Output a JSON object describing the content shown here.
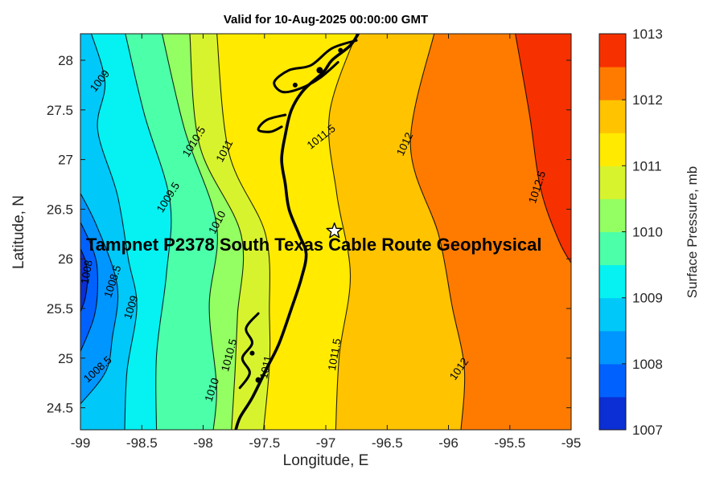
{
  "figure": {
    "title": "Valid for 10-Aug-2025 00:00:00 GMT",
    "annotation": "Tampnet P2378 South Texas Cable Route Geophysical",
    "xlabel": "Longitude, E",
    "ylabel": "Latitude, N",
    "colorbar_label": "Surface Pressure, mb"
  },
  "chart_data": {
    "type": "heatmap",
    "subtype": "filled-contour-map",
    "title": "Valid for 10-Aug-2025 00:00:00 GMT",
    "overlay_text": "Tampnet P2378 South Texas Cable Route Geophysical",
    "xlabel": "Longitude, E",
    "ylabel": "Latitude, N",
    "xlim": [
      -99,
      -95
    ],
    "ylim": [
      24.278,
      28.267
    ],
    "x_ticks": [
      "-99",
      "-98.5",
      "-98",
      "-97.5",
      "-97",
      "-96.5",
      "-96",
      "-95.5",
      "-95"
    ],
    "x_tick_values": [
      -99,
      -98.5,
      -98,
      -97.5,
      -97,
      -96.5,
      -96,
      -95.5,
      -95
    ],
    "y_ticks": [
      "28",
      "27.5",
      "27",
      "26.5",
      "26",
      "25.5",
      "25",
      "24.5"
    ],
    "y_tick_values": [
      28,
      27.5,
      27,
      26.5,
      26,
      25.5,
      25,
      24.5
    ],
    "colorbar": {
      "label": "Surface Pressure, mb",
      "ticks": [
        "1013",
        "1012",
        "1011",
        "1010",
        "1009",
        "1008",
        "1007"
      ],
      "tick_values": [
        1013,
        1012,
        1011,
        1010,
        1009,
        1008,
        1007
      ],
      "range": [
        1007,
        1013
      ],
      "band_step": 0.5,
      "min": 1007,
      "base_band_index": 3,
      "colors": [
        "#0b2fd4",
        "#0061ff",
        "#0096ff",
        "#00c8f8",
        "#06f1f1",
        "#4cffa9",
        "#93ff62",
        "#d7f32e",
        "#ffea00",
        "#ffc300",
        "#ff7b00",
        "#f73000"
      ]
    },
    "contour_levels": [
      1007.5,
      1008,
      1008.5,
      1009,
      1009.5,
      1010,
      1010.5,
      1011,
      1011.5,
      1012,
      1012.5
    ],
    "contours": [
      {
        "level": 1007.5,
        "attach": "left",
        "points": [
          [
            -99.05,
            26.22
          ],
          [
            -98.95,
            25.94
          ],
          [
            -98.96,
            25.61
          ],
          [
            -99.05,
            25.33
          ]
        ]
      },
      {
        "level": 1008,
        "attach": "left",
        "points": [
          [
            -99.05,
            26.49
          ],
          [
            -98.9,
            26.1
          ],
          [
            -98.86,
            25.82
          ],
          [
            -98.89,
            25.41
          ],
          [
            -99.05,
            24.93
          ]
        ]
      },
      {
        "level": 1008.5,
        "attach": "left",
        "points": [
          [
            -99.05,
            26.77
          ],
          [
            -98.87,
            26.34
          ],
          [
            -98.7,
            25.73
          ],
          [
            -98.74,
            25.21
          ],
          [
            -98.8,
            24.85
          ],
          [
            -99.05,
            24.47
          ]
        ]
      },
      {
        "level": 1009,
        "attach": "right",
        "points": [
          [
            -98.92,
            28.3
          ],
          [
            -98.8,
            27.78
          ],
          [
            -98.86,
            27.3
          ],
          [
            -98.7,
            26.65
          ],
          [
            -98.61,
            26.0
          ],
          [
            -98.54,
            25.52
          ],
          [
            -98.62,
            24.87
          ],
          [
            -98.64,
            24.25
          ]
        ]
      },
      {
        "level": 1009.5,
        "attach": "right",
        "points": [
          [
            -98.64,
            28.3
          ],
          [
            -98.48,
            27.46
          ],
          [
            -98.27,
            26.58
          ],
          [
            -98.3,
            25.84
          ],
          [
            -98.38,
            25.03
          ],
          [
            -98.38,
            24.25
          ]
        ]
      },
      {
        "level": 1010,
        "attach": "right",
        "points": [
          [
            -98.34,
            28.3
          ],
          [
            -98.15,
            27.3
          ],
          [
            -97.89,
            26.34
          ],
          [
            -97.95,
            25.52
          ],
          [
            -97.89,
            24.71
          ],
          [
            -97.92,
            24.25
          ]
        ]
      },
      {
        "level": 1010.5,
        "attach": "right",
        "points": [
          [
            -98.11,
            28.3
          ],
          [
            -98.03,
            27.15
          ],
          [
            -97.69,
            26.24
          ],
          [
            -97.72,
            25.43
          ],
          [
            -97.74,
            24.87
          ],
          [
            -97.77,
            24.25
          ]
        ]
      },
      {
        "level": 1011,
        "attach": "right",
        "points": [
          [
            -97.89,
            28.3
          ],
          [
            -97.79,
            27.07
          ],
          [
            -97.49,
            26.24
          ],
          [
            -97.46,
            25.43
          ],
          [
            -97.46,
            24.92
          ],
          [
            -97.51,
            24.25
          ]
        ]
      },
      {
        "level": 1011.5,
        "attach": "right",
        "points": [
          [
            -96.74,
            28.3
          ],
          [
            -96.97,
            27.46
          ],
          [
            -96.91,
            26.65
          ],
          [
            -96.8,
            25.84
          ],
          [
            -96.89,
            25.03
          ],
          [
            -96.92,
            24.25
          ]
        ]
      },
      {
        "level": 1012,
        "attach": "right",
        "points": [
          [
            -96.11,
            28.3
          ],
          [
            -96.31,
            27.15
          ],
          [
            -96.08,
            26.24
          ],
          [
            -95.97,
            25.52
          ],
          [
            -95.87,
            24.89
          ],
          [
            -95.9,
            24.25
          ]
        ]
      },
      {
        "level": 1012.5,
        "attach": "right",
        "points": [
          [
            -95.46,
            28.3
          ],
          [
            -95.34,
            27.46
          ],
          [
            -95.25,
            26.71
          ],
          [
            -95.1,
            26.18
          ],
          [
            -94.99,
            25.94
          ]
        ]
      }
    ],
    "contour_labels": [
      {
        "text": "1009",
        "lon": -98.82,
        "lat": 27.77,
        "angle": -52
      },
      {
        "text": "1010.5",
        "lon": -98.05,
        "lat": 27.16,
        "angle": -58
      },
      {
        "text": "1011",
        "lon": -97.8,
        "lat": 27.07,
        "angle": -62
      },
      {
        "text": "1011.5",
        "lon": -97.02,
        "lat": 27.2,
        "angle": -38
      },
      {
        "text": "1012",
        "lon": -96.33,
        "lat": 27.14,
        "angle": -65
      },
      {
        "text": "1012.5",
        "lon": -95.25,
        "lat": 26.71,
        "angle": -72
      },
      {
        "text": "1009.5",
        "lon": -98.26,
        "lat": 26.6,
        "angle": -58
      },
      {
        "text": "1010",
        "lon": -97.86,
        "lat": 26.35,
        "angle": -62
      },
      {
        "text": "1008",
        "lon": -98.92,
        "lat": 25.86,
        "angle": -80
      },
      {
        "text": "1008.5",
        "lon": -98.71,
        "lat": 25.76,
        "angle": -72
      },
      {
        "text": "1009",
        "lon": -98.56,
        "lat": 25.5,
        "angle": -72
      },
      {
        "text": "1008.5",
        "lon": -98.84,
        "lat": 24.86,
        "angle": -42
      },
      {
        "text": "1010",
        "lon": -97.9,
        "lat": 24.67,
        "angle": -72
      },
      {
        "text": "1010.5",
        "lon": -97.76,
        "lat": 25.02,
        "angle": -75
      },
      {
        "text": "1011",
        "lon": -97.46,
        "lat": 24.9,
        "angle": -78
      },
      {
        "text": "1011.5",
        "lon": -96.9,
        "lat": 25.03,
        "angle": -80
      },
      {
        "text": "1012",
        "lon": -95.89,
        "lat": 24.87,
        "angle": -55
      }
    ],
    "marker": {
      "type": "pentagram",
      "lon": -96.93,
      "lat": 26.28,
      "fill": "#ffffff",
      "edge": "#000000"
    },
    "coastline": {
      "main": [
        [
          -96.72,
          28.3
        ],
        [
          -96.8,
          28.15
        ],
        [
          -96.95,
          28.0
        ],
        [
          -97.02,
          27.88
        ],
        [
          -97.18,
          27.7
        ],
        [
          -97.28,
          27.5
        ],
        [
          -97.33,
          27.25
        ],
        [
          -97.36,
          27.0
        ],
        [
          -97.33,
          26.75
        ],
        [
          -97.3,
          26.5
        ],
        [
          -97.22,
          26.25
        ],
        [
          -97.16,
          26.05
        ],
        [
          -97.2,
          25.8
        ],
        [
          -97.28,
          25.5
        ],
        [
          -97.38,
          25.15
        ],
        [
          -97.48,
          24.9
        ],
        [
          -97.6,
          24.6
        ],
        [
          -97.7,
          24.4
        ],
        [
          -97.74,
          24.25
        ]
      ],
      "features": [
        [
          [
            -96.75,
            28.2
          ],
          [
            -96.95,
            28.12
          ],
          [
            -97.12,
            27.95
          ],
          [
            -97.3,
            27.9
          ],
          [
            -97.42,
            27.78
          ],
          [
            -97.35,
            27.68
          ],
          [
            -97.2,
            27.72
          ],
          [
            -97.05,
            27.82
          ],
          [
            -96.9,
            27.98
          ]
        ],
        [
          [
            -97.33,
            27.45
          ],
          [
            -97.48,
            27.4
          ],
          [
            -97.55,
            27.3
          ],
          [
            -97.45,
            27.28
          ],
          [
            -97.36,
            27.33
          ]
        ],
        [
          [
            -97.55,
            25.45
          ],
          [
            -97.65,
            25.3
          ],
          [
            -97.6,
            25.15
          ],
          [
            -97.68,
            25.0
          ],
          [
            -97.62,
            24.85
          ],
          [
            -97.7,
            24.7
          ]
        ]
      ],
      "blobs": [
        {
          "lon": -97.05,
          "lat": 27.9,
          "r": 4
        },
        {
          "lon": -97.25,
          "lat": 27.75,
          "r": 3
        },
        {
          "lon": -96.88,
          "lat": 28.1,
          "r": 3
        },
        {
          "lon": -97.6,
          "lat": 25.05,
          "r": 3
        },
        {
          "lon": -97.55,
          "lat": 24.78,
          "r": 3.5
        }
      ]
    },
    "grid_estimate": {
      "lons": [
        -99,
        -98.5,
        -98,
        -97.5,
        -97,
        -96.5,
        -96,
        -95.5,
        -95
      ],
      "lats": [
        28,
        27.5,
        27,
        26.5,
        26,
        25.5,
        25,
        24.5
      ],
      "pressure_mb": [
        [
          1008.8,
          1009.7,
          1010.4,
          1011.0,
          1011.3,
          1011.7,
          1012.0,
          1012.5,
          1012.9
        ],
        [
          1008.7,
          1009.6,
          1010.3,
          1010.9,
          1011.3,
          1011.6,
          1011.9,
          1012.3,
          1012.7
        ],
        [
          1008.5,
          1009.4,
          1010.2,
          1010.8,
          1011.2,
          1011.5,
          1011.8,
          1012.2,
          1012.6
        ],
        [
          1008.0,
          1009.0,
          1009.9,
          1010.7,
          1011.2,
          1011.4,
          1011.8,
          1012.1,
          1012.5
        ],
        [
          1007.8,
          1008.8,
          1009.8,
          1010.7,
          1011.3,
          1011.5,
          1011.9,
          1012.2,
          1012.4
        ],
        [
          1007.6,
          1008.7,
          1009.8,
          1010.6,
          1011.2,
          1011.5,
          1011.8,
          1012.1,
          1012.3
        ],
        [
          1007.8,
          1008.9,
          1009.9,
          1010.5,
          1011.1,
          1011.4,
          1011.7,
          1012.0,
          1012.2
        ],
        [
          1008.2,
          1009.2,
          1010.0,
          1010.6,
          1011.1,
          1011.4,
          1011.6,
          1011.9,
          1012.1
        ]
      ]
    }
  }
}
